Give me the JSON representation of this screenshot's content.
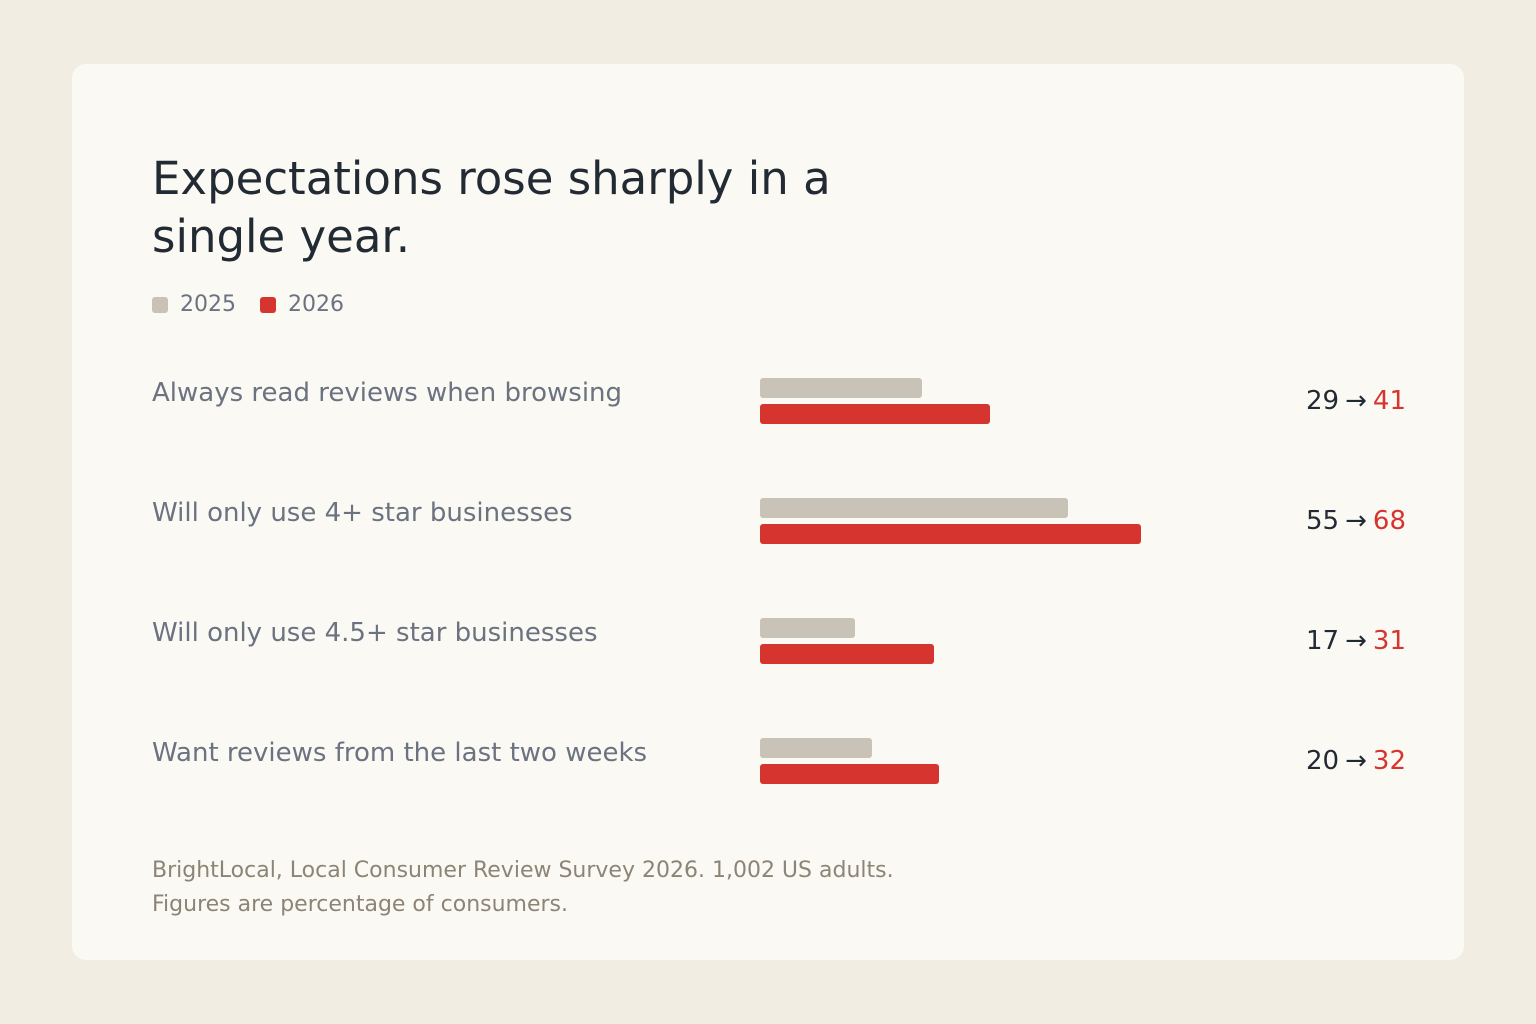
{
  "colors": {
    "background": "#f2ede2",
    "card": "#fbf9f4",
    "series_2025": "#c8c3b6",
    "series_2026": "#d6352f",
    "text": "#222a33",
    "muted": "#6b7280",
    "footnote": "#8c8576"
  },
  "arrow_glyph": "→",
  "chart_data": {
    "type": "bar",
    "orientation": "horizontal",
    "title": "Expectations rose sharply in a single year.",
    "xlim": [
      0,
      100
    ],
    "grid": false,
    "legend_placement": "top-left",
    "categories": [
      "Always read reviews when browsing",
      "Will only use 4+ star businesses",
      "Will only use 4.5+ star businesses",
      "Want reviews from the last two weeks"
    ],
    "series": [
      {
        "name": "2025",
        "values": [
          29,
          55,
          17,
          20
        ]
      },
      {
        "name": "2026",
        "values": [
          41,
          68,
          31,
          32
        ]
      }
    ]
  },
  "footnote": {
    "line1": "BrightLocal, Local Consumer Review Survey 2026. 1,002 US adults.",
    "line2": "Figures are percentage of consumers."
  }
}
